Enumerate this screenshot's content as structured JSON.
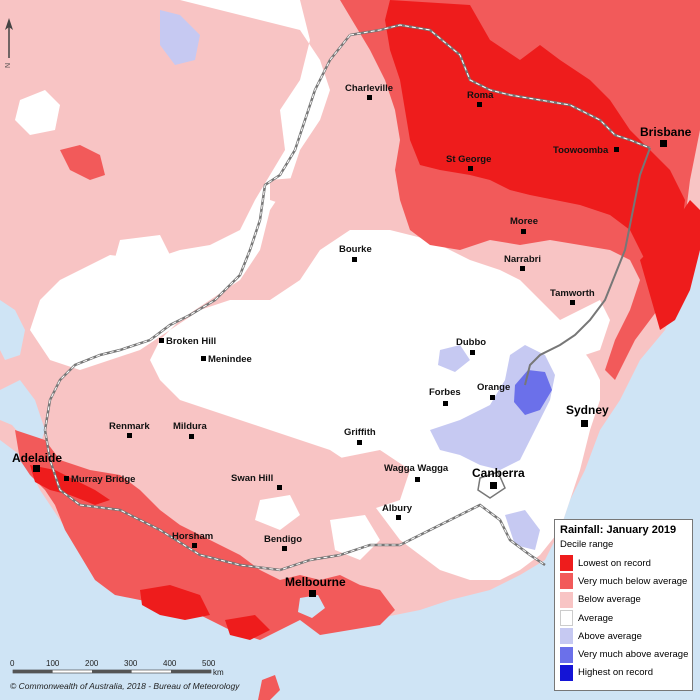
{
  "legend": {
    "title": "Rainfall: January 2019",
    "subtitle": "Decile range",
    "items": [
      {
        "label": "Lowest on record",
        "color": "#ee1c1c"
      },
      {
        "label": "Very much below average",
        "color": "#f25a5a"
      },
      {
        "label": "Below average",
        "color": "#f8c4c4"
      },
      {
        "label": "Average",
        "color": "#ffffff"
      },
      {
        "label": "Above average",
        "color": "#c6c9f2"
      },
      {
        "label": "Very much above average",
        "color": "#6b70ea"
      },
      {
        "label": "Highest on record",
        "color": "#1414d6"
      }
    ]
  },
  "places": {
    "charleville": "Charleville",
    "roma": "Roma",
    "brisbane": "Brisbane",
    "toowoomba": "Toowoomba",
    "st_george": "St George",
    "moree": "Moree",
    "bourke": "Bourke",
    "narrabri": "Narrabri",
    "tamworth": "Tamworth",
    "broken_hill": "Broken Hill",
    "menindee": "Menindee",
    "dubbo": "Dubbo",
    "forbes": "Forbes",
    "orange": "Orange",
    "sydney": "Sydney",
    "renmark": "Renmark",
    "mildura": "Mildura",
    "griffith": "Griffith",
    "adelaide": "Adelaide",
    "murray_bridge": "Murray Bridge",
    "swan_hill": "Swan Hill",
    "wagga_wagga": "Wagga Wagga",
    "canberra": "Canberra",
    "albury": "Albury",
    "horsham": "Horsham",
    "bendigo": "Bendigo",
    "melbourne": "Melbourne"
  },
  "scale_bar": {
    "ticks": [
      "0",
      "100",
      "200",
      "300",
      "400",
      "500"
    ],
    "unit": "km"
  },
  "north_arrow": "N",
  "copyright": "© Commonwealth of Australia, 2018 - Bureau of Meteorology"
}
